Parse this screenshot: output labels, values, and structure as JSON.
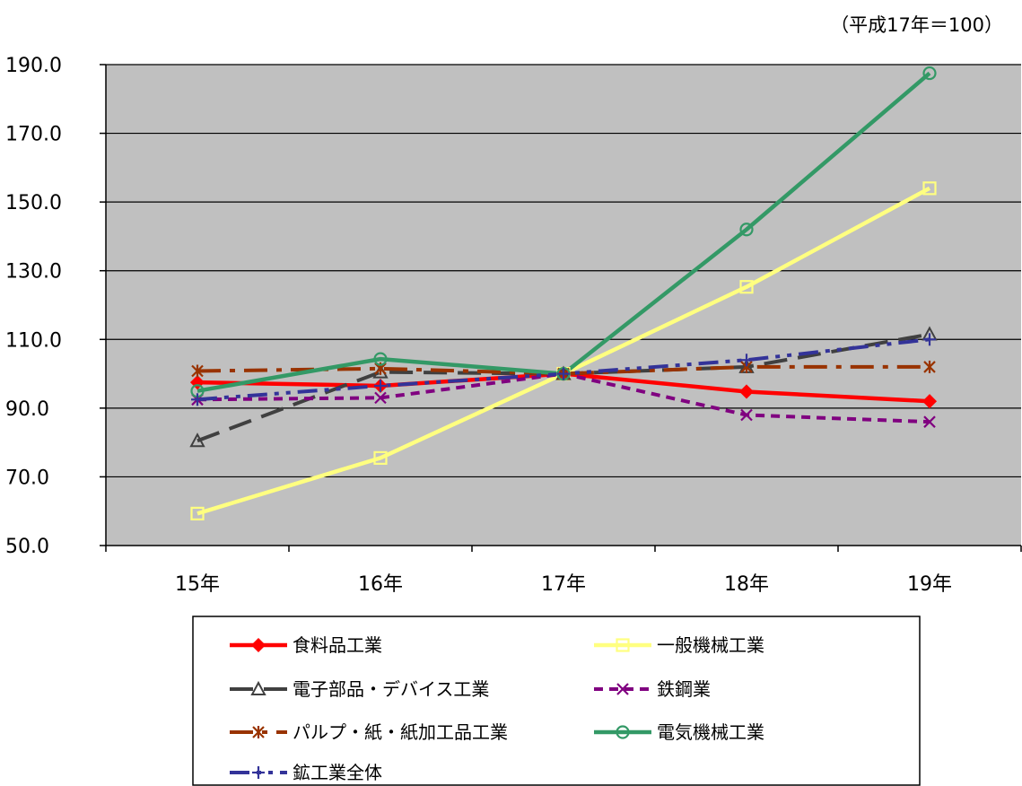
{
  "chart_data": {
    "type": "line",
    "title": "",
    "unit_note": "（平成17年＝100）",
    "xlabel": "",
    "ylabel": "",
    "categories": [
      "15年",
      "16年",
      "17年",
      "18年",
      "19年"
    ],
    "ylim": [
      50,
      190
    ],
    "yticks": [
      50,
      70,
      90,
      110,
      130,
      150,
      170,
      190
    ],
    "ytick_labels": [
      "50.0",
      "70.0",
      "90.0",
      "110.0",
      "130.0",
      "150.0",
      "170.0",
      "190.0"
    ],
    "grid": "horizontal",
    "plot_background": "#c0c0c0",
    "legend_position": "bottom",
    "series": [
      {
        "name": "食料品工業",
        "values": [
          97.5,
          96.5,
          100.0,
          94.8,
          92.0
        ],
        "color": "#ff0000",
        "dash": "solid",
        "marker": "diamond"
      },
      {
        "name": "一般機械工業",
        "values": [
          59.3,
          75.5,
          100.0,
          125.3,
          154.0
        ],
        "color": "#ffff80",
        "dash": "solid",
        "marker": "square"
      },
      {
        "name": "電子部品・デバイス工業",
        "values": [
          80.5,
          100.5,
          100.0,
          102.0,
          111.5
        ],
        "color": "#404040",
        "dash": "dash",
        "marker": "triangle"
      },
      {
        "name": "鉄鋼業",
        "values": [
          92.5,
          93.0,
          100.0,
          88.0,
          86.0
        ],
        "color": "#800080",
        "dash": "shortdash",
        "marker": "x"
      },
      {
        "name": "パルプ・紙・紙加工品工業",
        "values": [
          100.8,
          101.5,
          100.0,
          102.0,
          102.0
        ],
        "color": "#993300",
        "dash": "dashdot",
        "marker": "star"
      },
      {
        "name": "電気機械工業",
        "values": [
          95.0,
          104.3,
          100.0,
          142.0,
          187.5
        ],
        "color": "#339966",
        "dash": "solid",
        "marker": "circle"
      },
      {
        "name": "鉱工業全体",
        "values": [
          92.5,
          96.5,
          100.0,
          104.0,
          110.0
        ],
        "color": "#333399",
        "dash": "dashdotdot",
        "marker": "plus"
      }
    ]
  }
}
